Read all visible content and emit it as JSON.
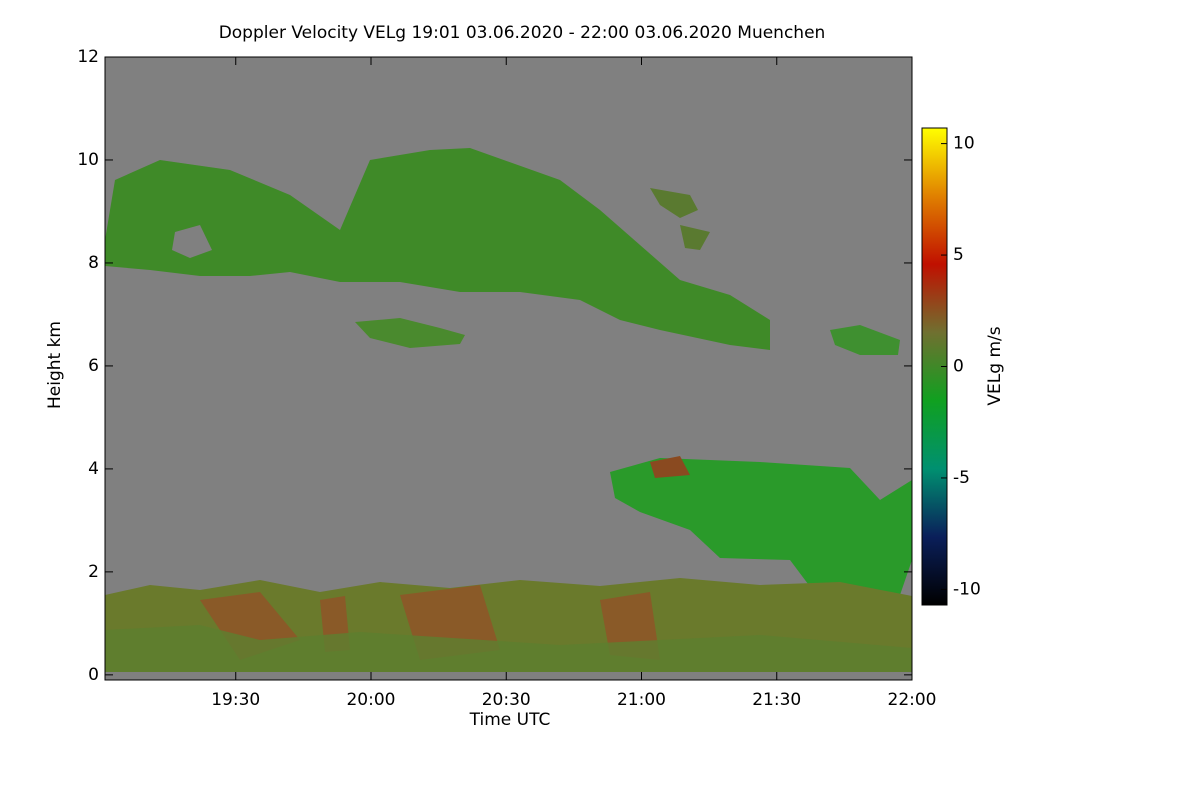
{
  "chart_data": {
    "type": "heatmap",
    "title": "Doppler Velocity VELg   19:01 03.06.2020 - 22:00 03.06.2020 Muenchen",
    "x_label": "Time UTC",
    "y_label": "Height km",
    "colorbar_label": "VELg m/s",
    "xlim": [
      1141,
      1320
    ],
    "xticks": [
      {
        "value": 1170,
        "label": "19:30"
      },
      {
        "value": 1200,
        "label": "20:00"
      },
      {
        "value": 1230,
        "label": "20:30"
      },
      {
        "value": 1260,
        "label": "21:00"
      },
      {
        "value": 1290,
        "label": "21:30"
      },
      {
        "value": 1320,
        "label": "22:00"
      }
    ],
    "ylim": [
      -0.1,
      12
    ],
    "yticks": [
      0,
      2,
      4,
      6,
      8,
      10,
      12
    ],
    "zlim": [
      -10.7,
      10.7
    ],
    "zticks": [
      -10,
      -5,
      0,
      5,
      10
    ],
    "colormap": [
      "#000000",
      "#0a1f5a",
      "#009070",
      "#10a020",
      "#707030",
      "#c01000",
      "#e08000",
      "#ffff00"
    ],
    "background_color": "#808080"
  }
}
